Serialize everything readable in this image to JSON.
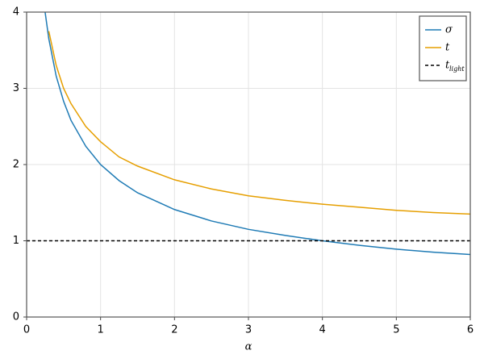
{
  "chart_data": {
    "type": "line",
    "xlabel": "α",
    "x": [
      0.25,
      0.3,
      0.4,
      0.5,
      0.6,
      0.8,
      1,
      1.25,
      1.5,
      2,
      2.5,
      3,
      3.5,
      4,
      4.5,
      5,
      5.5,
      6
    ],
    "series": [
      {
        "name": "σ",
        "color": "#1f7bb5",
        "values": [
          4.0,
          3.65,
          3.16,
          2.83,
          2.58,
          2.24,
          2.0,
          1.79,
          1.63,
          1.41,
          1.26,
          1.15,
          1.07,
          1.0,
          0.94,
          0.89,
          0.85,
          0.82
        ]
      },
      {
        "name": "t",
        "color": "#e69f00",
        "values": [
          null,
          3.75,
          3.3,
          3.0,
          2.8,
          2.5,
          2.3,
          2.1,
          1.98,
          1.8,
          1.68,
          1.59,
          1.53,
          1.48,
          1.44,
          1.4,
          1.37,
          1.35
        ]
      }
    ],
    "hline": {
      "name": "t",
      "subscript": "light",
      "value": 1,
      "color": "#000000",
      "dash": true
    },
    "xlim": [
      0,
      6
    ],
    "xticks": [
      0,
      1,
      2,
      3,
      4,
      5,
      6
    ],
    "ylim": [
      0,
      4
    ],
    "yticks": [
      0,
      1,
      2,
      3,
      4
    ],
    "grid": true,
    "legend": "top-right"
  }
}
